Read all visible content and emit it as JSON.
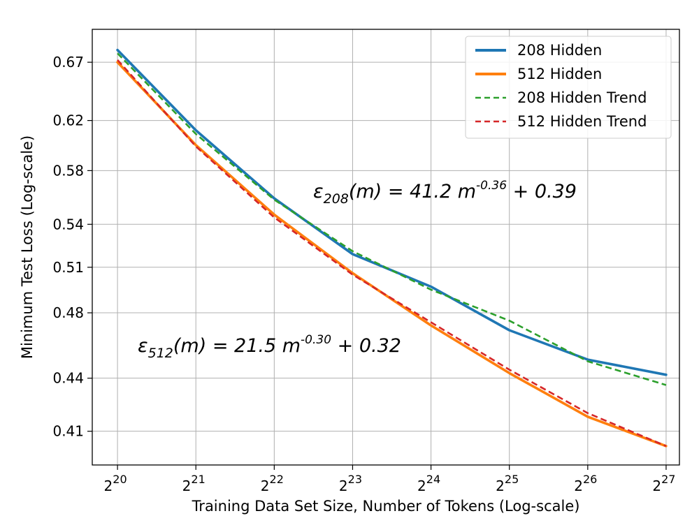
{
  "chart_data": {
    "type": "line",
    "xlabel": "Training Data Set Size, Number of Tokens (Log-scale)",
    "ylabel": "Minimum Test Loss (Log-scale)",
    "x_scale": "log2",
    "y_scale": "log",
    "x": [
      1048576,
      2097152,
      4194304,
      8388608,
      16777216,
      33554432,
      67108864,
      134217728
    ],
    "x_tick_labels": [
      {
        "base": "2",
        "exp": "20"
      },
      {
        "base": "2",
        "exp": "21"
      },
      {
        "base": "2",
        "exp": "22"
      },
      {
        "base": "2",
        "exp": "23"
      },
      {
        "base": "2",
        "exp": "24"
      },
      {
        "base": "2",
        "exp": "25"
      },
      {
        "base": "2",
        "exp": "26"
      },
      {
        "base": "2",
        "exp": "27"
      }
    ],
    "y_ticks": [
      0.41,
      0.44,
      0.48,
      0.51,
      0.54,
      0.58,
      0.62,
      0.67
    ],
    "y_tick_labels": [
      "0.41",
      "0.44",
      "0.48",
      "0.51",
      "0.54",
      "0.58",
      "0.62",
      "0.67"
    ],
    "xlim": [
      838861,
      150994944
    ],
    "ylim": [
      0.392,
      0.7
    ],
    "grid": true,
    "legend_position": "top-right",
    "series": [
      {
        "name": "208 Hidden",
        "color": "#1f77b4",
        "style": "solid",
        "values": [
          0.681,
          0.612,
          0.559,
          0.519,
          0.497,
          0.469,
          0.451,
          0.442
        ]
      },
      {
        "name": "512 Hidden",
        "color": "#ff7f0e",
        "style": "solid",
        "values": [
          0.67,
          0.6,
          0.547,
          0.506,
          0.472,
          0.443,
          0.418,
          0.402
        ]
      },
      {
        "name": "208 Hidden Trend",
        "color": "#2ca02c",
        "style": "dashed",
        "values": [
          0.678,
          0.609,
          0.558,
          0.521,
          0.495,
          0.475,
          0.45,
          0.436
        ]
      },
      {
        "name": "512 Hidden Trend",
        "color": "#d62728",
        "style": "dashed",
        "values": [
          0.672,
          0.599,
          0.545,
          0.505,
          0.474,
          0.445,
          0.42,
          0.402
        ]
      }
    ],
    "annotations": [
      {
        "lhs": "ε",
        "sub": "208",
        "mid": "(m) = 41.2 m",
        "sup": "-0.36",
        "rhs": " + 0.39"
      },
      {
        "lhs": "ε",
        "sub": "512",
        "mid": "(m) = 21.5 m",
        "sup": "-0.30",
        "rhs": " + 0.32"
      }
    ]
  }
}
